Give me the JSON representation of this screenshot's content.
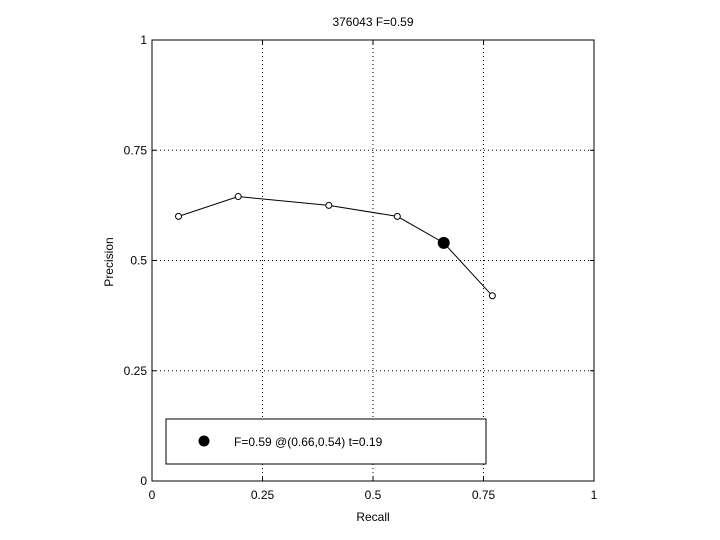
{
  "chart_data": {
    "type": "line",
    "title": "376043 F=0.59",
    "xlabel": "Recall",
    "ylabel": "Precision",
    "xlim": [
      0,
      1
    ],
    "ylim": [
      0,
      1
    ],
    "xticks": [
      0,
      0.25,
      0.5,
      0.75,
      1
    ],
    "yticks": [
      0,
      0.25,
      0.5,
      0.75,
      1
    ],
    "xtick_labels": [
      "0",
      "0.25",
      "0.5",
      "0.75",
      "1"
    ],
    "ytick_labels": [
      "0",
      "0.25",
      "0.5",
      "0.75",
      "1"
    ],
    "grid": true,
    "series": [
      {
        "x": [
          0.06,
          0.195,
          0.4,
          0.555,
          0.77
        ],
        "y": [
          0.6,
          0.645,
          0.625,
          0.6,
          0.42
        ],
        "line_points": [
          {
            "x": 0.06,
            "y": 0.6
          },
          {
            "x": 0.195,
            "y": 0.645
          },
          {
            "x": 0.4,
            "y": 0.625
          },
          {
            "x": 0.555,
            "y": 0.6
          },
          {
            "x": 0.66,
            "y": 0.54
          },
          {
            "x": 0.77,
            "y": 0.42
          }
        ]
      }
    ],
    "best_point": {
      "x": 0.66,
      "y": 0.54
    },
    "legend": {
      "placement": "bottom-left",
      "text": "F=0.59 @(0.66,0.54) t=0.19"
    },
    "colors": {
      "line": "#000000",
      "marker_fill": "#ffffff",
      "best_marker": "#000000"
    }
  }
}
